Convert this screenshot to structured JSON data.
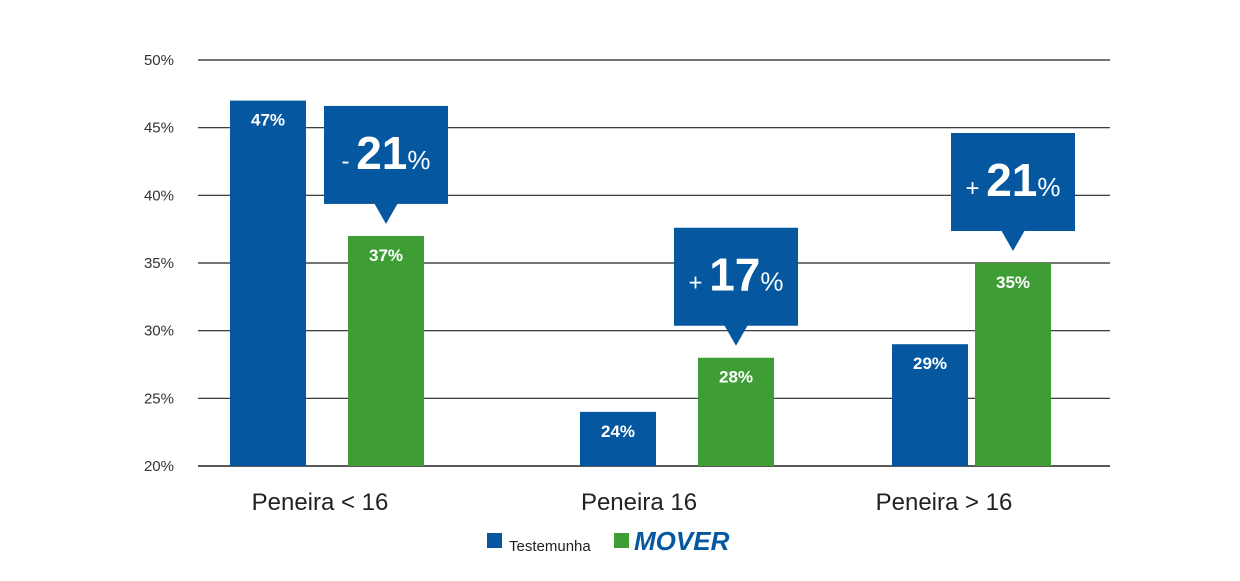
{
  "chart_data": {
    "type": "bar",
    "categories": [
      "Peneira < 16",
      "Peneira 16",
      "Peneira > 16"
    ],
    "series": [
      {
        "name": "Testemunha",
        "values": [
          47,
          24,
          29
        ],
        "labels": [
          "47%",
          "24%",
          "29%"
        ],
        "color": "#0558a0"
      },
      {
        "name": "MOVER",
        "values": [
          37,
          28,
          35
        ],
        "labels": [
          "37%",
          "28%",
          "35%"
        ],
        "color": "#3e9e35"
      }
    ],
    "ylim": [
      20,
      50
    ],
    "yticks": [
      "20%",
      "25%",
      "30%",
      "35%",
      "40%",
      "45%",
      "50%"
    ],
    "grid": true,
    "legend_position": "bottom-center",
    "annotations": [
      {
        "sign": "-",
        "number": "21",
        "unit": "%",
        "category": "Peneira < 16"
      },
      {
        "sign": "+",
        "number": "17",
        "unit": "%",
        "category": "Peneira 16"
      },
      {
        "sign": "+",
        "number": "21",
        "unit": "%",
        "category": "Peneira > 16"
      }
    ],
    "colors": {
      "callout": "#0558a0",
      "grid": "#222222"
    }
  }
}
